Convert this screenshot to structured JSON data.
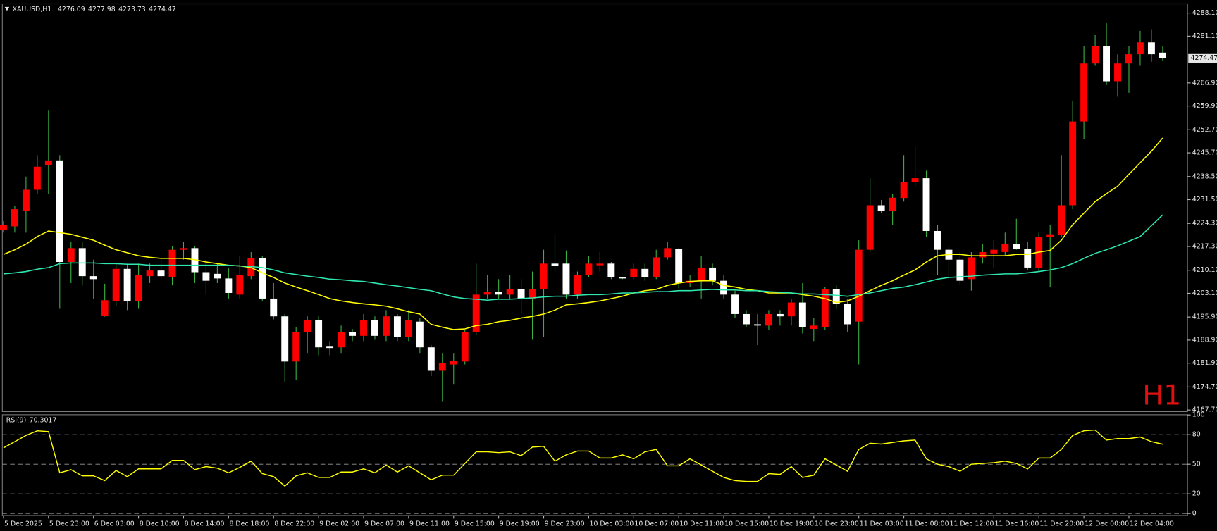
{
  "chart_data": [
    {
      "type": "candlestick",
      "title": "XAUUSD,H1",
      "watermark": "H1",
      "categories": [
        "5 Dec 2025",
        null,
        null,
        null,
        "5 Dec 23:00",
        null,
        null,
        null,
        "6 Dec 03:00",
        null,
        null,
        null,
        "8 Dec 10:00",
        null,
        null,
        null,
        "8 Dec 14:00",
        null,
        null,
        null,
        "8 Dec 18:00",
        null,
        null,
        null,
        "8 Dec 22:00",
        null,
        null,
        null,
        "9 Dec 02:00",
        null,
        null,
        null,
        "9 Dec 07:00",
        null,
        null,
        null,
        "9 Dec 11:00",
        null,
        null,
        null,
        "9 Dec 15:00",
        null,
        null,
        null,
        "9 Dec 19:00",
        null,
        null,
        null,
        "9 Dec 23:00",
        null,
        null,
        null,
        "10 Dec 03:00",
        null,
        null,
        null,
        "10 Dec 07:00",
        null,
        null,
        null,
        "10 Dec 11:00",
        null,
        null,
        null,
        "10 Dec 15:00",
        null,
        null,
        null,
        "10 Dec 19:00",
        null,
        null,
        null,
        "10 Dec 23:00",
        null,
        null,
        null,
        "11 Dec 03:00",
        null,
        null,
        null,
        "11 Dec 08:00",
        null,
        null,
        null,
        "11 Dec 12:00",
        null,
        null,
        null,
        "11 Dec 16:00",
        null,
        null,
        null,
        "11 Dec 20:00",
        null,
        null,
        null,
        "12 Dec 00:00",
        null,
        null,
        null,
        "12 Dec 04:00",
        null,
        null,
        null
      ],
      "open": [
        4222.2,
        4223.4,
        4228.1,
        4234.5,
        4242.0,
        4243.4,
        4212.6,
        4216.8,
        4208.3,
        4196.3,
        4200.8,
        4210.5,
        4200.8,
        4208.3,
        4210.0,
        4208.1,
        4216.3,
        4216.8,
        4209.5,
        4209.0,
        4207.6,
        4202.7,
        4208.3,
        4213.7,
        4201.5,
        4196.1,
        4182.4,
        4191.4,
        4194.9,
        4186.9,
        4186.7,
        4191.4,
        4190.2,
        4194.9,
        4190.2,
        4196.1,
        4189.8,
        4194.5,
        4186.7,
        4179.6,
        4181.5,
        4182.4,
        4191.4,
        4202.7,
        4203.6,
        4202.7,
        4204.3,
        4201.5,
        4204.3,
        4212.1,
        4212.1,
        4202.7,
        4208.6,
        4211.6,
        4212.1,
        4207.9,
        4207.9,
        4210.5,
        4208.1,
        4214.0,
        4216.6,
        4206.2,
        4206.7,
        4210.9,
        4206.9,
        4202.7,
        4196.8,
        4193.7,
        4193.3,
        4196.8,
        4196.1,
        4200.3,
        4192.3,
        4192.8,
        4204.3,
        4199.9,
        4194.5,
        4216.3,
        4229.8,
        4228.1,
        4232.0,
        4236.8,
        4238.0,
        4222.0,
        4216.3,
        4213.3,
        4207.4,
        4214.0,
        4215.2,
        4215.6,
        4218.0,
        4216.6,
        4210.9,
        4220.1,
        4220.8,
        4229.8,
        4255.2,
        4272.8,
        4278.0,
        4267.4,
        4272.8,
        4275.6,
        4279.2,
        4276.09
      ],
      "high": [
        4225.0,
        4229.7,
        4238.5,
        4245.0,
        4258.7,
        4245.0,
        4218.7,
        4218.7,
        4213.3,
        4206.0,
        4212.1,
        4212.1,
        4212.1,
        4212.1,
        4213.3,
        4217.3,
        4218.7,
        4217.3,
        4213.3,
        4212.1,
        4210.9,
        4214.5,
        4215.6,
        4214.5,
        4206.2,
        4196.8,
        4192.8,
        4196.1,
        4196.1,
        4188.6,
        4193.3,
        4192.3,
        4196.8,
        4196.1,
        4198.0,
        4196.8,
        4198.0,
        4195.6,
        4187.4,
        4185.0,
        4185.0,
        4192.1,
        4212.1,
        4208.6,
        4207.4,
        4208.6,
        4207.4,
        4209.7,
        4216.3,
        4221.0,
        4216.1,
        4209.7,
        4214.5,
        4215.6,
        4212.6,
        4208.1,
        4212.1,
        4212.1,
        4216.3,
        4218.7,
        4216.8,
        4208.6,
        4214.5,
        4212.1,
        4208.6,
        4203.9,
        4198.0,
        4196.8,
        4198.0,
        4198.0,
        4201.5,
        4206.2,
        4195.6,
        4205.0,
        4205.5,
        4201.5,
        4219.2,
        4238.0,
        4231.4,
        4233.3,
        4245.0,
        4247.4,
        4240.3,
        4223.9,
        4217.3,
        4215.6,
        4215.6,
        4218.0,
        4219.2,
        4221.5,
        4225.7,
        4218.7,
        4221.5,
        4223.9,
        4245.0,
        4261.5,
        4278.0,
        4281.5,
        4285.0,
        4275.6,
        4278.0,
        4282.7,
        4283.2,
        4277.98
      ],
      "low": [
        4221.5,
        4221.5,
        4221.5,
        4233.3,
        4233.3,
        4198.4,
        4206.2,
        4205.5,
        4201.5,
        4196.0,
        4199.2,
        4198.0,
        4198.4,
        4206.2,
        4207.4,
        4205.5,
        4213.3,
        4206.2,
        4202.7,
        4206.2,
        4201.5,
        4201.5,
        4207.4,
        4200.8,
        4195.2,
        4176.1,
        4176.8,
        4185.0,
        4184.3,
        4184.3,
        4185.0,
        4188.6,
        4188.6,
        4189.0,
        4188.6,
        4188.6,
        4188.6,
        4185.0,
        4178.0,
        4170.2,
        4175.6,
        4181.5,
        4190.4,
        4201.5,
        4201.5,
        4201.5,
        4196.8,
        4189.0,
        4189.8,
        4209.7,
        4201.5,
        4201.5,
        4207.9,
        4209.7,
        4207.4,
        4207.4,
        4207.4,
        4206.9,
        4207.4,
        4213.3,
        4204.6,
        4205.0,
        4201.5,
        4205.5,
        4201.5,
        4195.6,
        4192.8,
        4187.4,
        4192.1,
        4193.3,
        4193.3,
        4190.9,
        4188.6,
        4192.1,
        4198.4,
        4191.4,
        4181.5,
        4215.6,
        4227.4,
        4223.9,
        4230.9,
        4235.6,
        4220.3,
        4208.6,
        4207.4,
        4205.5,
        4203.9,
        4212.1,
        4210.9,
        4214.5,
        4216.3,
        4210.2,
        4209.7,
        4205.0,
        4220.3,
        4228.6,
        4249.8,
        4272.1,
        4266.2,
        4262.7,
        4263.9,
        4272.1,
        4273.3,
        4273.73
      ],
      "close": [
        4223.8,
        4228.6,
        4234.5,
        4241.5,
        4243.4,
        4212.6,
        4216.8,
        4208.3,
        4207.4,
        4201.0,
        4210.5,
        4200.8,
        4208.6,
        4210.0,
        4208.3,
        4216.3,
        4216.8,
        4209.5,
        4206.9,
        4207.6,
        4203.2,
        4208.6,
        4213.7,
        4201.5,
        4196.1,
        4182.4,
        4191.4,
        4194.9,
        4186.7,
        4186.5,
        4191.4,
        4190.2,
        4194.9,
        4190.2,
        4196.1,
        4189.8,
        4194.9,
        4186.7,
        4179.6,
        4182.0,
        4182.6,
        4191.4,
        4202.7,
        4203.6,
        4202.7,
        4204.3,
        4201.5,
        4204.3,
        4212.1,
        4211.4,
        4202.7,
        4208.6,
        4212.1,
        4212.1,
        4207.9,
        4207.6,
        4210.5,
        4208.1,
        4214.0,
        4216.8,
        4206.2,
        4206.9,
        4210.9,
        4206.9,
        4202.7,
        4196.8,
        4193.7,
        4193.3,
        4196.8,
        4196.1,
        4200.3,
        4192.8,
        4193.3,
        4204.3,
        4199.9,
        4193.7,
        4216.3,
        4229.8,
        4228.1,
        4232.1,
        4236.8,
        4238.0,
        4222.0,
        4216.3,
        4213.3,
        4206.9,
        4214.0,
        4215.6,
        4216.3,
        4218.0,
        4216.6,
        4210.9,
        4220.1,
        4221.0,
        4229.8,
        4255.2,
        4272.8,
        4278.0,
        4267.4,
        4272.8,
        4275.6,
        4279.2,
        4275.6,
        4274.47
      ],
      "up_color": "#ff0000",
      "down_color": "#ffffff",
      "wick_color": "#3cb043",
      "price_line_color": "#8fa3b8",
      "series": [
        {
          "color": "#ffff00",
          "values": [
            4214.9,
            4216.3,
            4218.0,
            4220.3,
            4222.0,
            4221.5,
            4221.0,
            4220.1,
            4219.2,
            4217.7,
            4216.3,
            4215.4,
            4214.5,
            4214.0,
            4213.7,
            4213.7,
            4213.7,
            4213.3,
            4212.6,
            4212.1,
            4211.6,
            4211.4,
            4210.9,
            4209.3,
            4207.9,
            4206.2,
            4205.0,
            4203.9,
            4202.7,
            4201.5,
            4200.8,
            4200.3,
            4199.9,
            4199.6,
            4199.2,
            4198.4,
            4197.5,
            4196.8,
            4193.7,
            4192.8,
            4192.1,
            4192.3,
            4193.3,
            4193.7,
            4194.5,
            4194.9,
            4195.6,
            4196.1,
            4196.8,
            4198.0,
            4199.6,
            4199.9,
            4200.3,
            4200.8,
            4201.5,
            4202.2,
            4203.2,
            4203.9,
            4204.3,
            4205.5,
            4206.2,
            4206.7,
            4206.9,
            4206.9,
            4205.5,
            4205.0,
            4204.3,
            4203.9,
            4203.2,
            4203.2,
            4203.2,
            4202.7,
            4202.2,
            4201.5,
            4200.3,
            4200.8,
            4202.2,
            4203.9,
            4205.5,
            4206.9,
            4208.6,
            4210.2,
            4212.6,
            4214.5,
            4214.9,
            4214.9,
            4214.5,
            4214.5,
            4214.5,
            4214.5,
            4214.9,
            4214.9,
            4215.6,
            4216.1,
            4219.2,
            4223.9,
            4227.4,
            4230.9,
            4233.3,
            4235.6,
            4239.2,
            4242.7,
            4246.2,
            4250.2
          ]
        },
        {
          "color": "#2ee8b0",
          "values": [
            4209.0,
            4209.3,
            4209.7,
            4210.4,
            4210.9,
            4212.1,
            4212.3,
            4212.3,
            4212.3,
            4212.1,
            4212.1,
            4211.9,
            4211.9,
            4211.6,
            4211.6,
            4211.6,
            4211.6,
            4211.6,
            4211.6,
            4211.6,
            4211.6,
            4211.4,
            4211.2,
            4210.9,
            4210.2,
            4209.3,
            4208.8,
            4208.3,
            4207.9,
            4207.4,
            4207.2,
            4206.9,
            4206.7,
            4206.2,
            4205.7,
            4205.3,
            4204.8,
            4204.3,
            4203.9,
            4202.9,
            4202.0,
            4201.5,
            4201.3,
            4201.0,
            4201.3,
            4201.3,
            4201.5,
            4201.7,
            4202.0,
            4202.2,
            4202.2,
            4202.5,
            4202.7,
            4202.7,
            4202.9,
            4203.2,
            4203.2,
            4203.4,
            4203.6,
            4203.6,
            4203.9,
            4203.9,
            4204.1,
            4204.3,
            4204.1,
            4204.1,
            4203.9,
            4203.9,
            4203.6,
            4203.4,
            4203.2,
            4202.9,
            4202.9,
            4202.7,
            4202.5,
            4202.2,
            4202.7,
            4203.2,
            4203.9,
            4204.6,
            4205.0,
            4205.7,
            4206.5,
            4207.4,
            4207.9,
            4208.1,
            4208.3,
            4208.6,
            4208.8,
            4209.0,
            4209.0,
            4209.3,
            4209.7,
            4210.2,
            4210.9,
            4212.1,
            4213.7,
            4215.2,
            4216.3,
            4217.5,
            4218.9,
            4220.3,
            4223.6,
            4226.9
          ]
        }
      ],
      "ylim": [
        4167.2,
        4290.9
      ],
      "yticks": [
        {
          "value": 4288.1,
          "label": "4288.10"
        },
        {
          "value": 4281.1,
          "label": "4281.10"
        },
        {
          "value": 4266.9,
          "label": "4266.90"
        },
        {
          "value": 4259.9,
          "label": "4259.90"
        },
        {
          "value": 4252.7,
          "label": "4252.70"
        },
        {
          "value": 4245.7,
          "label": "4245.70"
        },
        {
          "value": 4238.5,
          "label": "4238.50"
        },
        {
          "value": 4231.5,
          "label": "4231.50"
        },
        {
          "value": 4224.3,
          "label": "4224.30"
        },
        {
          "value": 4217.3,
          "label": "4217.30"
        },
        {
          "value": 4210.1,
          "label": "4210.10"
        },
        {
          "value": 4203.1,
          "label": "4203.10"
        },
        {
          "value": 4195.9,
          "label": "4195.90"
        },
        {
          "value": 4188.9,
          "label": "4188.90"
        },
        {
          "value": 4181.9,
          "label": "4181.90"
        },
        {
          "value": 4174.7,
          "label": "4174.70"
        },
        {
          "value": 4167.7,
          "label": "4167.70"
        }
      ],
      "grid": false
    },
    {
      "type": "line",
      "title": "RSI(9)",
      "series": [
        {
          "color": "#ffff00",
          "values": [
            66.6,
            72.9,
            79.2,
            83.9,
            83.1,
            41.3,
            44.5,
            38.2,
            38.2,
            33.4,
            43.7,
            37.4,
            45.3,
            45.3,
            45.3,
            53.9,
            53.9,
            44.5,
            47.6,
            46.0,
            41.3,
            46.8,
            53.1,
            40.5,
            37.4,
            27.9,
            38.2,
            41.3,
            36.6,
            36.6,
            42.1,
            42.1,
            45.3,
            41.3,
            49.2,
            42.1,
            48.4,
            41.3,
            34.2,
            38.9,
            38.9,
            50.8,
            62.6,
            62.6,
            61.8,
            62.6,
            58.7,
            67.4,
            68.1,
            53.1,
            59.5,
            63.4,
            63.4,
            56.3,
            56.3,
            59.5,
            55.5,
            62.6,
            65.0,
            48.4,
            48.4,
            55.5,
            49.2,
            42.9,
            36.6,
            33.4,
            32.6,
            32.6,
            40.5,
            39.7,
            47.6,
            36.6,
            38.9,
            55.5,
            49.2,
            42.9,
            65.0,
            71.3,
            70.5,
            72.1,
            73.7,
            74.5,
            55.5,
            50.0,
            47.6,
            42.9,
            50.0,
            50.8,
            51.6,
            53.1,
            50.8,
            45.3,
            56.3,
            56.3,
            65.0,
            79.2,
            83.9,
            84.7,
            74.5,
            76.0,
            76.0,
            77.6,
            72.9,
            70.3017
          ]
        }
      ],
      "ylim": [
        -2,
        100.2
      ],
      "yticks": [
        100,
        80,
        50,
        20,
        0
      ],
      "level_color": "#9a9a9a"
    }
  ]
}
